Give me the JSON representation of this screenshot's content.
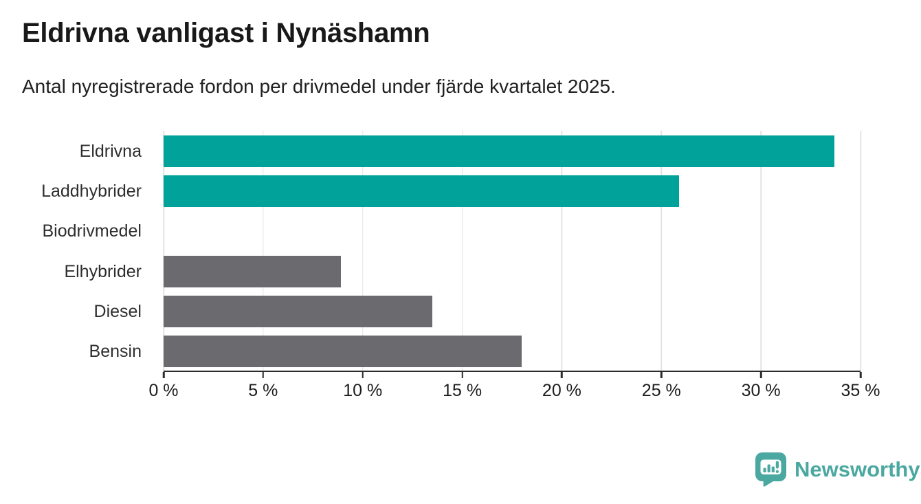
{
  "chart_data": {
    "type": "bar",
    "orientation": "horizontal",
    "title": "Eldrivna vanligast i Nynäshamn",
    "subtitle": "Antal nyregistrerade fordon per drivmedel under fjärde kvartalet 2025.",
    "categories": [
      "Eldrivna",
      "Laddhybrider",
      "Biodrivmedel",
      "Elhybrider",
      "Diesel",
      "Bensin"
    ],
    "values": [
      33.7,
      25.9,
      0,
      8.9,
      13.5,
      18.0
    ],
    "unit": "%",
    "xlim": [
      0,
      35
    ],
    "x_tick_values": [
      0,
      5,
      10,
      15,
      20,
      25,
      30,
      35
    ],
    "x_tick_labels": [
      "0 %",
      "5 %",
      "10 %",
      "15 %",
      "20 %",
      "25 %",
      "30 %",
      "35 %"
    ],
    "grid": true,
    "legend": "none",
    "highlight_color": "#00a29a",
    "default_color": "#6b6b6f",
    "bar_colors": [
      "#00a29a",
      "#00a29a",
      "#6b6b6f",
      "#6b6b6f",
      "#6b6b6f",
      "#6b6b6f"
    ]
  },
  "colors": {
    "background": "#ffffff",
    "grid": "#e3e3e3",
    "axis": "#2c2c2c",
    "title_text": "#191919",
    "label_text": "#2e2e2e",
    "brand": "#4aa8a0"
  },
  "footer": {
    "brand": "Newsworthy",
    "logo_icon": "speech-bubble-bar-chart-icon"
  }
}
